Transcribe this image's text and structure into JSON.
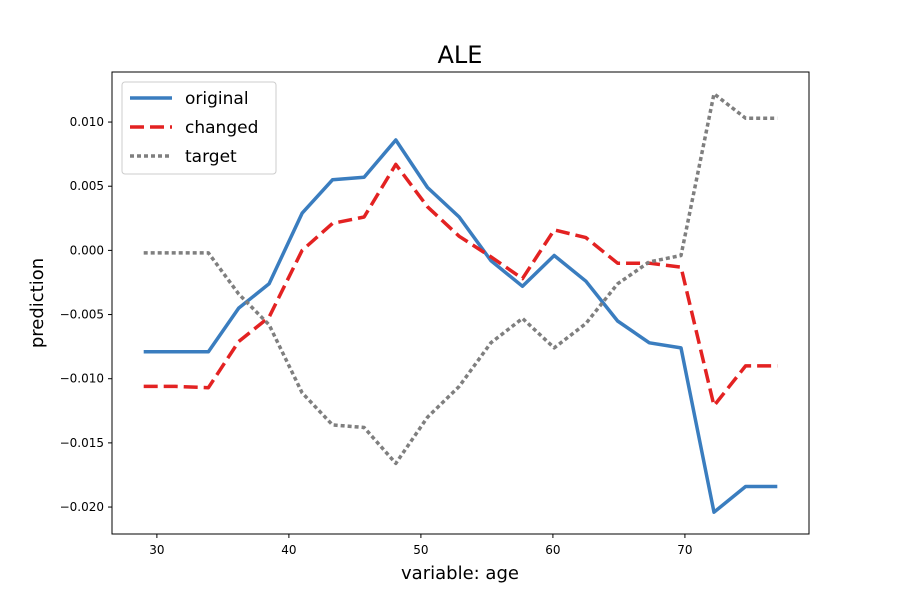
{
  "chart_data": {
    "type": "line",
    "title": "ALE",
    "xlabel": "variable: age",
    "ylabel": "prediction",
    "xlim": [
      26.6,
      79.4
    ],
    "ylim": [
      -0.0221,
      0.0139
    ],
    "xticks": [
      30,
      40,
      50,
      60,
      70
    ],
    "yticks": [
      -0.02,
      -0.015,
      -0.01,
      -0.005,
      0.0,
      0.005,
      0.01
    ],
    "ytick_labels": [
      "−0.020",
      "−0.015",
      "−0.010",
      "−0.005",
      "0.000",
      "0.005",
      "0.010"
    ],
    "grid": false,
    "legend": "top-left",
    "x": [
      29,
      31.4,
      33.9,
      36.2,
      38.5,
      41,
      43.3,
      45.7,
      48.1,
      50.5,
      52.9,
      55.3,
      57.7,
      60.1,
      62.5,
      64.9,
      67.3,
      69.7,
      72.2,
      74.6,
      77
    ],
    "series": [
      {
        "name": "original",
        "color": "#3a7dbf",
        "style": "solid",
        "values": [
          -0.0079,
          -0.0079,
          -0.0079,
          -0.0045,
          -0.0026,
          0.0029,
          0.0055,
          0.0057,
          0.0086,
          0.0049,
          0.0026,
          -0.0008,
          -0.0028,
          -0.0004,
          -0.0024,
          -0.0055,
          -0.0072,
          -0.0076,
          -0.0204,
          -0.0184,
          -0.0184
        ]
      },
      {
        "name": "changed",
        "color": "#e32222",
        "style": "dashed",
        "values": [
          -0.0106,
          -0.0106,
          -0.0107,
          -0.0071,
          -0.0052,
          0.0,
          0.0021,
          0.0026,
          0.0067,
          0.0034,
          0.0011,
          -0.0005,
          -0.0022,
          0.0016,
          0.001,
          -0.001,
          -0.001,
          -0.0013,
          -0.0121,
          -0.009,
          -0.009
        ]
      },
      {
        "name": "target",
        "color": "#7f7f7f",
        "style": "dotted",
        "values": [
          -0.0002,
          -0.0002,
          -0.0002,
          -0.0034,
          -0.0058,
          -0.0111,
          -0.0136,
          -0.0138,
          -0.0166,
          -0.013,
          -0.0106,
          -0.0072,
          -0.0053,
          -0.0076,
          -0.0057,
          -0.0026,
          -0.0009,
          -0.0004,
          0.0122,
          0.0103,
          0.0103
        ]
      }
    ]
  }
}
